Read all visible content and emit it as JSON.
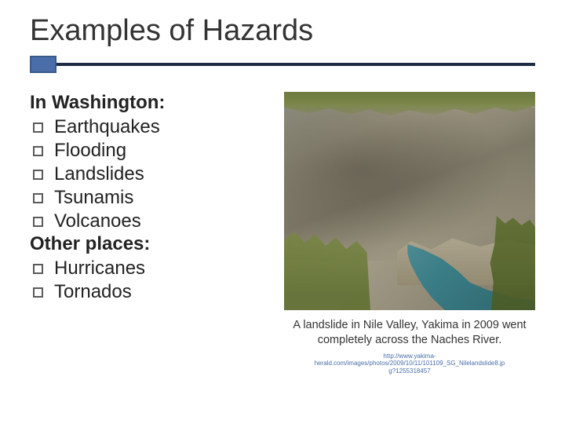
{
  "title": "Examples of Hazards",
  "accent_color": "#4a6ea9",
  "rule_color": "#1f2a44",
  "left": {
    "section1_heading": "In Washington:",
    "section1_items": [
      "Earthquakes",
      "Flooding",
      "Landslides",
      "Tsunamis",
      "Volcanoes"
    ],
    "section2_heading": "Other places:",
    "section2_items": [
      "Hurricanes",
      "Tornados"
    ]
  },
  "right": {
    "caption_line1": "A landslide in Nile Valley, Yakima in 2009 went",
    "caption_line2": "completely across the Naches River.",
    "source_line1": "http://www.yakima-",
    "source_line2": "herald.com/images/photos/2009/10/11/101109_SG_Nilelandslide8.jp",
    "source_line3": "g?1255318457",
    "photo": {
      "type": "natural-photo-placeholder",
      "terrain_color": "#9b9480",
      "river_color": "#3a7d86",
      "vegetation_color": "#5d6e2e"
    }
  }
}
